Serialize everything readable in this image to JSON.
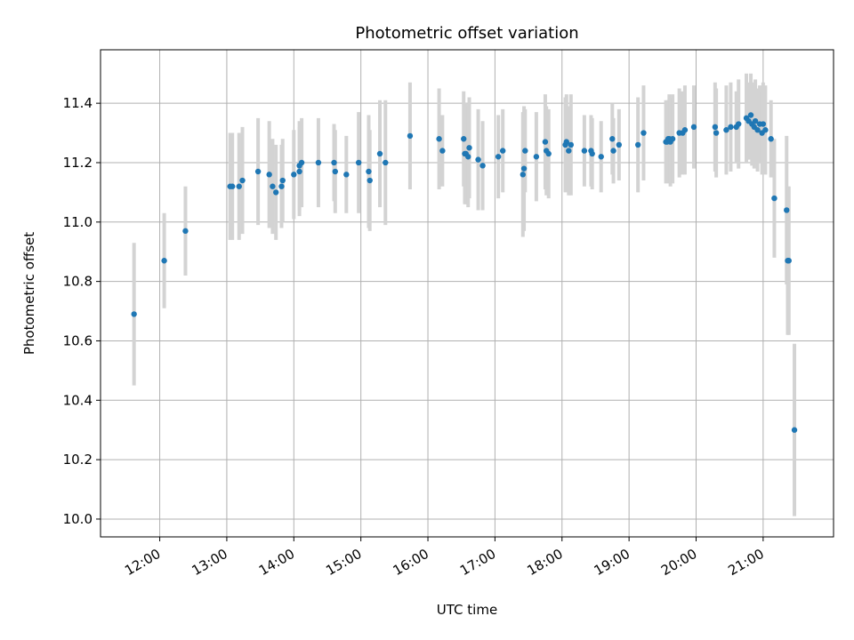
{
  "chart_data": {
    "type": "scatter",
    "title": "Photometric offset variation",
    "xlabel": "UTC time",
    "ylabel": "Photometric offset",
    "grid": true,
    "xlim": [
      "11:07",
      "22:03"
    ],
    "ylim": [
      9.94,
      11.58
    ],
    "x_ticks": [
      "12:00",
      "13:00",
      "14:00",
      "15:00",
      "16:00",
      "17:00",
      "18:00",
      "19:00",
      "20:00",
      "21:00"
    ],
    "y_ticks": [
      "10.0",
      "10.2",
      "10.4",
      "10.6",
      "10.8",
      "11.0",
      "11.2",
      "11.4"
    ],
    "colors": {
      "points": "#1f77b4",
      "error_bars": "#d3d3d3",
      "grid": "#b0b0b0"
    },
    "series": [
      {
        "marker": "point",
        "error_bars": true,
        "x": [
          "11:37",
          "12:04",
          "12:23",
          "13:03",
          "13:05",
          "13:11",
          "13:14",
          "13:28",
          "13:38",
          "13:41",
          "13:44",
          "13:49",
          "13:50",
          "14:00",
          "14:05",
          "14:05",
          "14:07",
          "14:22",
          "14:36",
          "14:37",
          "14:47",
          "14:58",
          "15:07",
          "15:08",
          "15:17",
          "15:22",
          "15:44",
          "16:10",
          "16:13",
          "16:32",
          "16:33",
          "16:34",
          "16:36",
          "16:37",
          "16:45",
          "16:49",
          "17:03",
          "17:07",
          "17:25",
          "17:26",
          "17:27",
          "17:37",
          "17:45",
          "17:46",
          "17:48",
          "18:03",
          "18:04",
          "18:06",
          "18:08",
          "18:20",
          "18:26",
          "18:27",
          "18:35",
          "18:45",
          "18:46",
          "18:51",
          "19:08",
          "19:13",
          "19:33",
          "19:34",
          "19:35",
          "19:36",
          "19:37",
          "19:39",
          "19:45",
          "19:48",
          "19:50",
          "19:58",
          "20:17",
          "20:18",
          "20:27",
          "20:31",
          "20:36",
          "20:38",
          "20:45",
          "20:47",
          "20:49",
          "20:50",
          "20:52",
          "20:53",
          "20:55",
          "20:57",
          "20:59",
          "21:00",
          "21:02",
          "21:07",
          "21:10",
          "21:21",
          "21:22",
          "21:23",
          "21:28"
        ],
        "y": [
          10.69,
          10.87,
          10.97,
          11.12,
          11.12,
          11.12,
          11.14,
          11.17,
          11.16,
          11.12,
          11.1,
          11.12,
          11.14,
          11.16,
          11.17,
          11.19,
          11.2,
          11.2,
          11.2,
          11.17,
          11.16,
          11.2,
          11.17,
          11.14,
          11.23,
          11.2,
          11.29,
          11.28,
          11.24,
          11.28,
          11.23,
          11.23,
          11.22,
          11.25,
          11.21,
          11.19,
          11.22,
          11.24,
          11.16,
          11.18,
          11.24,
          11.22,
          11.27,
          11.24,
          11.23,
          11.26,
          11.27,
          11.24,
          11.26,
          11.24,
          11.24,
          11.23,
          11.22,
          11.28,
          11.24,
          11.26,
          11.26,
          11.3,
          11.27,
          11.27,
          11.28,
          11.28,
          11.27,
          11.28,
          11.3,
          11.3,
          11.31,
          11.32,
          11.32,
          11.3,
          11.31,
          11.32,
          11.32,
          11.33,
          11.35,
          11.34,
          11.36,
          11.33,
          11.32,
          11.34,
          11.31,
          11.33,
          11.3,
          11.33,
          11.31,
          11.28,
          11.08,
          11.04,
          10.87,
          10.87,
          10.3
        ],
        "err": [
          0.24,
          0.16,
          0.15,
          0.18,
          0.18,
          0.18,
          0.18,
          0.18,
          0.18,
          0.16,
          0.16,
          0.14,
          0.14,
          0.15,
          0.15,
          0.15,
          0.15,
          0.15,
          0.13,
          0.14,
          0.13,
          0.17,
          0.19,
          0.17,
          0.18,
          0.21,
          0.18,
          0.17,
          0.12,
          0.16,
          0.17,
          0.17,
          0.17,
          0.17,
          0.17,
          0.15,
          0.14,
          0.14,
          0.21,
          0.21,
          0.14,
          0.15,
          0.16,
          0.15,
          0.15,
          0.16,
          0.16,
          0.15,
          0.17,
          0.12,
          0.12,
          0.12,
          0.12,
          0.12,
          0.11,
          0.12,
          0.16,
          0.16,
          0.14,
          0.13,
          0.13,
          0.15,
          0.15,
          0.15,
          0.15,
          0.14,
          0.15,
          0.14,
          0.15,
          0.15,
          0.15,
          0.15,
          0.12,
          0.15,
          0.15,
          0.13,
          0.14,
          0.14,
          0.14,
          0.14,
          0.14,
          0.13,
          0.14,
          0.14,
          0.15,
          0.13,
          0.2,
          0.25,
          0.25,
          0.25,
          0.29
        ]
      }
    ]
  }
}
